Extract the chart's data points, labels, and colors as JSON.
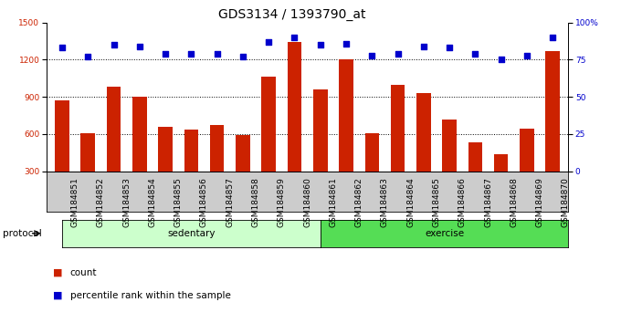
{
  "title": "GDS3134 / 1393790_at",
  "categories": [
    "GSM184851",
    "GSM184852",
    "GSM184853",
    "GSM184854",
    "GSM184855",
    "GSM184856",
    "GSM184857",
    "GSM184858",
    "GSM184859",
    "GSM184860",
    "GSM184861",
    "GSM184862",
    "GSM184863",
    "GSM184864",
    "GSM184865",
    "GSM184866",
    "GSM184867",
    "GSM184868",
    "GSM184869",
    "GSM184870"
  ],
  "bar_values": [
    870,
    610,
    980,
    900,
    660,
    635,
    675,
    595,
    1060,
    1340,
    960,
    1200,
    610,
    1000,
    930,
    720,
    530,
    435,
    645,
    1270
  ],
  "dot_values": [
    83,
    77,
    85,
    84,
    79,
    79,
    79,
    77,
    87,
    90,
    85,
    86,
    78,
    79,
    84,
    83,
    79,
    75,
    78,
    90
  ],
  "sedentary_count": 10,
  "exercise_count": 10,
  "bar_color": "#CC2200",
  "dot_color": "#0000CC",
  "sedentary_color": "#CCFFCC",
  "exercise_color": "#55DD55",
  "xtick_bg_color": "#CCCCCC",
  "ylim_left": [
    300,
    1500
  ],
  "ylim_right": [
    0,
    100
  ],
  "yticks_left": [
    300,
    600,
    900,
    1200,
    1500
  ],
  "yticks_right": [
    0,
    25,
    50,
    75,
    100
  ],
  "grid_values": [
    600,
    900,
    1200
  ],
  "protocol_label": "protocol",
  "sedentary_label": "sedentary",
  "exercise_label": "exercise",
  "legend_count": "count",
  "legend_pct": "percentile rank within the sample",
  "title_fontsize": 10,
  "tick_fontsize": 6.5,
  "label_fontsize": 7.5,
  "bar_width": 0.55
}
